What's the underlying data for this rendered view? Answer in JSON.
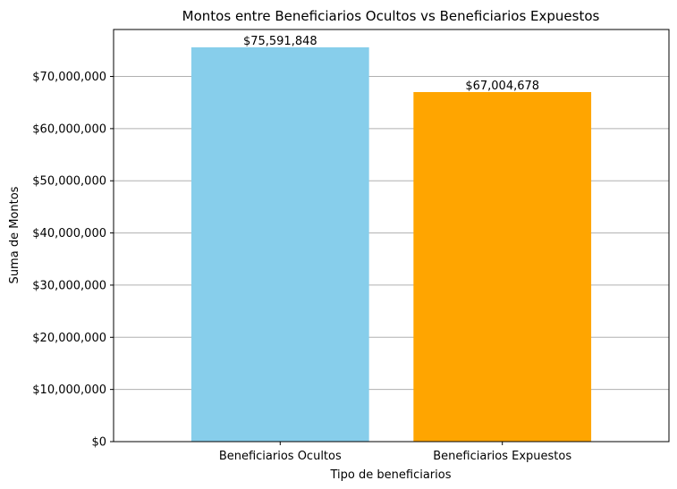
{
  "chart_data": {
    "type": "bar",
    "title": "Montos entre Beneficiarios Ocultos vs Beneficiarios Expuestos",
    "xlabel": "Tipo de beneficiarios",
    "ylabel": "Suma de Montos",
    "categories": [
      "Beneficiarios Ocultos",
      "Beneficiarios Expuestos"
    ],
    "values": [
      75591848,
      67004678
    ],
    "data_labels": [
      "$75,591,848",
      "$67,004,678"
    ],
    "colors": [
      "#87CEEB",
      "#FFA500"
    ],
    "ylim": [
      0,
      79000000
    ],
    "yticks": [
      0,
      10000000,
      20000000,
      30000000,
      40000000,
      50000000,
      60000000,
      70000000
    ],
    "ytick_labels": [
      "$0",
      "$10,000,000",
      "$20,000,000",
      "$30,000,000",
      "$40,000,000",
      "$50,000,000",
      "$60,000,000",
      "$70,000,000"
    ],
    "grid": "y-axis",
    "grid_color": "#b0b0b0"
  }
}
